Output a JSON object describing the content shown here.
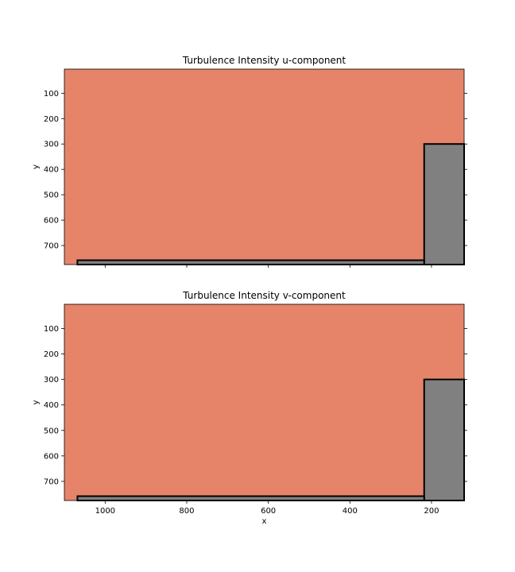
{
  "chart_data": [
    {
      "type": "heatmap",
      "title": "Turbulence Intensity u-component",
      "xlabel": "",
      "ylabel": "y",
      "xlim": [
        1100,
        120
      ],
      "ylim": [
        775,
        5
      ],
      "x_ticks": [
        1000,
        800,
        600,
        400,
        200
      ],
      "x_tick_labels_visible": false,
      "y_ticks": [
        100,
        200,
        300,
        400,
        500,
        600,
        700
      ],
      "y_tick_labels": [
        "100",
        "200",
        "300",
        "400",
        "500",
        "600",
        "700"
      ],
      "background_color": "#e6846a",
      "obstacles": [
        {
          "x": [
            120,
            218
          ],
          "y": [
            300,
            775
          ],
          "color": "#808080"
        },
        {
          "x": [
            218,
            1068
          ],
          "y": [
            758,
            775
          ],
          "color": "#808080"
        }
      ]
    },
    {
      "type": "heatmap",
      "title": "Turbulence Intensity v-component",
      "xlabel": "x",
      "ylabel": "y",
      "xlim": [
        1100,
        120
      ],
      "ylim": [
        775,
        5
      ],
      "x_ticks": [
        1000,
        800,
        600,
        400,
        200
      ],
      "x_tick_labels": [
        "1000",
        "800",
        "600",
        "400",
        "200"
      ],
      "x_tick_labels_visible": true,
      "y_ticks": [
        100,
        200,
        300,
        400,
        500,
        600,
        700
      ],
      "y_tick_labels": [
        "100",
        "200",
        "300",
        "400",
        "500",
        "600",
        "700"
      ],
      "background_color": "#e6846a",
      "obstacles": [
        {
          "x": [
            120,
            218
          ],
          "y": [
            300,
            775
          ],
          "color": "#808080"
        },
        {
          "x": [
            218,
            1068
          ],
          "y": [
            758,
            775
          ],
          "color": "#808080"
        }
      ]
    }
  ]
}
